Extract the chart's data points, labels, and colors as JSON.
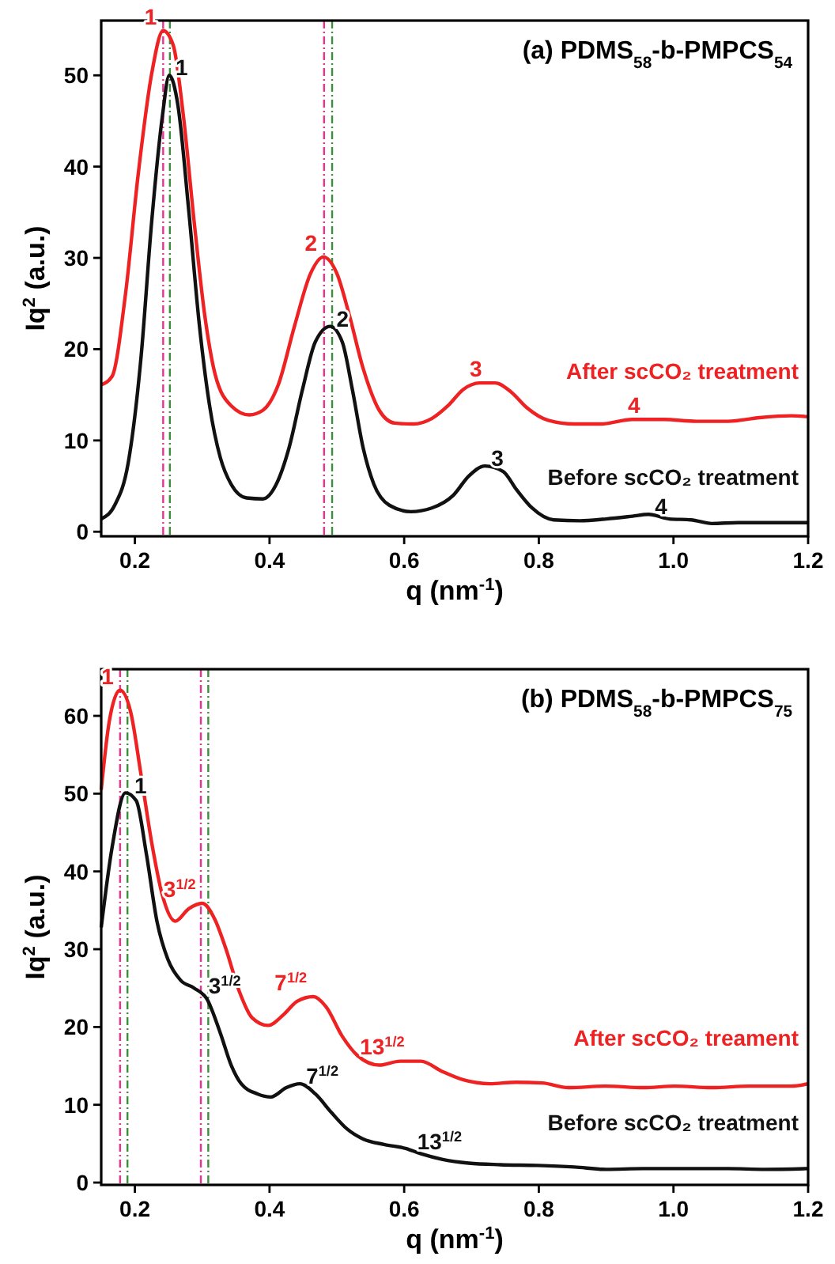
{
  "chart_data": [
    {
      "type": "line",
      "title": "(a) PDMS$_{58}$-b-PMPCS$_{54}$",
      "xlabel": "q (nm$^{-1}$)",
      "ylabel": "Iq$^{2}$ (a.u.)",
      "xlim": [
        0.15,
        1.2
      ],
      "ylim": [
        -0.5,
        56
      ],
      "xticks": [
        {
          "value": 0.2,
          "label": "0.2"
        },
        {
          "value": 0.4,
          "label": "0.4"
        },
        {
          "value": 0.6,
          "label": "0.6"
        },
        {
          "value": 0.8,
          "label": "0.8"
        },
        {
          "value": 1.0,
          "label": "1.0"
        },
        {
          "value": 1.2,
          "label": "1.2"
        }
      ],
      "yticks": [
        0,
        10,
        20,
        30,
        40,
        50
      ],
      "series": [
        {
          "name": "After scCO₂ treatment",
          "color": "#ee2222",
          "x": [
            0.15,
            0.166,
            0.186,
            0.205,
            0.225,
            0.242,
            0.257,
            0.272,
            0.288,
            0.304,
            0.319,
            0.343,
            0.37,
            0.39,
            0.413,
            0.437,
            0.461,
            0.48,
            0.5,
            0.519,
            0.539,
            0.563,
            0.586,
            0.614,
            0.641,
            0.665,
            0.688,
            0.712,
            0.735,
            0.759,
            0.782,
            0.814,
            0.853,
            0.892,
            0.939,
            0.986,
            1.034,
            1.081,
            1.128,
            1.175,
            1.2
          ],
          "values": [
            16.1,
            17,
            26,
            39.2,
            50.2,
            54.9,
            53.3,
            45.6,
            34,
            23.6,
            17.3,
            13.8,
            12.8,
            13.3,
            16.1,
            22.5,
            28.3,
            30.1,
            28.3,
            23.6,
            17.9,
            13.3,
            11.9,
            11.8,
            12.4,
            13.8,
            15.6,
            16.3,
            16.3,
            15.3,
            13.6,
            12.2,
            11.8,
            11.8,
            12.3,
            12.3,
            12.1,
            12.1,
            12.5,
            12.7,
            12.6
          ]
        },
        {
          "name": "Before scCO₂ treatment",
          "color": "#111111",
          "x": [
            0.15,
            0.17,
            0.19,
            0.209,
            0.225,
            0.241,
            0.251,
            0.264,
            0.28,
            0.296,
            0.311,
            0.327,
            0.343,
            0.366,
            0.39,
            0.41,
            0.429,
            0.449,
            0.468,
            0.49,
            0.508,
            0.523,
            0.539,
            0.555,
            0.578,
            0.61,
            0.641,
            0.673,
            0.696,
            0.72,
            0.747,
            0.767,
            0.79,
            0.822,
            0.861,
            0.9,
            0.939,
            0.963,
            0.994,
            1.026,
            1.057,
            1.096,
            1.136,
            1.2
          ],
          "values": [
            1.4,
            2.9,
            7.5,
            19,
            34,
            45.6,
            50,
            46.7,
            35.2,
            22.5,
            13.8,
            8.1,
            5.2,
            3.7,
            3.6,
            5.2,
            9.2,
            15.6,
            20.8,
            22.5,
            20.8,
            15.6,
            9.2,
            5.2,
            2.9,
            2.2,
            2.6,
            4,
            6.1,
            7.2,
            6.6,
            4.6,
            2.6,
            1.3,
            1.2,
            1.4,
            1.7,
            1.9,
            1.4,
            1.3,
            0.9,
            1,
            1,
            1
          ]
        }
      ],
      "ref_lines": [
        {
          "axis": "x",
          "value": 0.242,
          "color": "#e8338f",
          "line_style": "dashed"
        },
        {
          "axis": "x",
          "value": 0.252,
          "color": "#3a8f3a",
          "line_style": "dashed"
        },
        {
          "axis": "x",
          "value": 0.481,
          "color": "#e8338f",
          "line_style": "dashed"
        },
        {
          "axis": "x",
          "value": 0.493,
          "color": "#3a8f3a",
          "line_style": "dashed"
        }
      ],
      "annotations": [
        {
          "text": "1",
          "x": 0.242,
          "y": 54.9
        },
        {
          "text": "1",
          "x": 0.251,
          "y": 50
        },
        {
          "text": "2",
          "x": 0.48,
          "y": 30.1
        },
        {
          "text": "2",
          "x": 0.49,
          "y": 22.5
        },
        {
          "text": "3",
          "x": 0.725,
          "y": 16.3
        },
        {
          "text": "3",
          "x": 0.72,
          "y": 7.2
        },
        {
          "text": "4",
          "x": 0.96,
          "y": 12.3
        },
        {
          "text": "4",
          "x": 0.963,
          "y": 1.9
        }
      ]
    },
    {
      "type": "line",
      "title": "(b) PDMS$_{58}$-b-PMPCS$_{75}$",
      "xlabel": "q (nm$^{-1}$)",
      "ylabel": "Iq$^{2}$ (a.u.)",
      "xlim": [
        0.15,
        1.2
      ],
      "ylim": [
        -0.3,
        66
      ],
      "xticks": [
        {
          "value": 0.2,
          "label": "0.2"
        },
        {
          "value": 0.4,
          "label": "0.4"
        },
        {
          "value": 0.6,
          "label": "0.6"
        },
        {
          "value": 0.8,
          "label": "0.8"
        },
        {
          "value": 1.0,
          "label": "1.0"
        },
        {
          "value": 1.2,
          "label": "1.2"
        }
      ],
      "yticks": [
        0,
        10,
        20,
        30,
        40,
        50,
        60
      ],
      "series": [
        {
          "name": "After scCO₂ treament",
          "color": "#ee2222",
          "x": [
            0.15,
            0.162,
            0.178,
            0.194,
            0.209,
            0.225,
            0.241,
            0.26,
            0.28,
            0.3,
            0.319,
            0.335,
            0.355,
            0.374,
            0.398,
            0.421,
            0.441,
            0.465,
            0.484,
            0.508,
            0.531,
            0.563,
            0.594,
            0.625,
            0.656,
            0.688,
            0.727,
            0.766,
            0.805,
            0.844,
            0.9,
            0.955,
            1.002,
            1.057,
            1.112,
            1.175,
            1.2
          ],
          "values": [
            50.5,
            59.3,
            63.3,
            60.4,
            52.5,
            43.7,
            36.9,
            33.6,
            35.2,
            35.9,
            33.8,
            30.1,
            24.6,
            21.2,
            20.2,
            21.6,
            23.3,
            23.9,
            22.6,
            18.8,
            16.3,
            15.1,
            15.6,
            15.6,
            14.3,
            13.2,
            12.7,
            12.9,
            12.8,
            12.2,
            12.4,
            12.2,
            12.4,
            12.2,
            12.4,
            12.4,
            12.7
          ]
        },
        {
          "name": "Before scCO₂ treatment",
          "color": "#111111",
          "x": [
            0.15,
            0.166,
            0.186,
            0.202,
            0.217,
            0.233,
            0.249,
            0.268,
            0.288,
            0.307,
            0.327,
            0.343,
            0.358,
            0.382,
            0.402,
            0.425,
            0.445,
            0.468,
            0.492,
            0.515,
            0.539,
            0.57,
            0.602,
            0.625,
            0.656,
            0.696,
            0.743,
            0.798,
            0.853,
            0.9,
            0.955,
            1.018,
            1.081,
            1.136,
            1.2
          ],
          "values": [
            32.8,
            43,
            50.1,
            49.1,
            42.3,
            33.5,
            28.7,
            26,
            25,
            23.6,
            19.2,
            15.1,
            12.7,
            11.4,
            11,
            12.2,
            12.7,
            11.4,
            9,
            6.9,
            5.6,
            4.9,
            4.4,
            3.7,
            3,
            2.5,
            2.3,
            2.2,
            2,
            1.7,
            1.8,
            1.8,
            1.8,
            1.7,
            1.8
          ]
        }
      ],
      "ref_lines": [
        {
          "axis": "x",
          "value": 0.178,
          "color": "#e8338f",
          "line_style": "dashed"
        },
        {
          "axis": "x",
          "value": 0.189,
          "color": "#3a8f3a",
          "line_style": "dashed"
        },
        {
          "axis": "x",
          "value": 0.298,
          "color": "#e8338f",
          "line_style": "dashed"
        },
        {
          "axis": "x",
          "value": 0.309,
          "color": "#3a8f3a",
          "line_style": "dashed"
        }
      ],
      "annotations": [
        {
          "text": "1",
          "x": 0.178,
          "y": 63.3
        },
        {
          "text": "1",
          "x": 0.19,
          "y": 50
        },
        {
          "text": "3$^{1/2}$",
          "x": 0.3,
          "y": 35.9
        },
        {
          "text": "3$^{1/2}$",
          "x": 0.3,
          "y": 24.3
        },
        {
          "text": "7$^{1/2}$",
          "x": 0.465,
          "y": 23.9
        },
        {
          "text": "7$^{1/2}$",
          "x": 0.445,
          "y": 12.7
        },
        {
          "text": "13$^{1/2}$",
          "x": 0.61,
          "y": 15.7
        },
        {
          "text": "13$^{1/2}$",
          "x": 0.61,
          "y": 4.3
        }
      ]
    }
  ]
}
